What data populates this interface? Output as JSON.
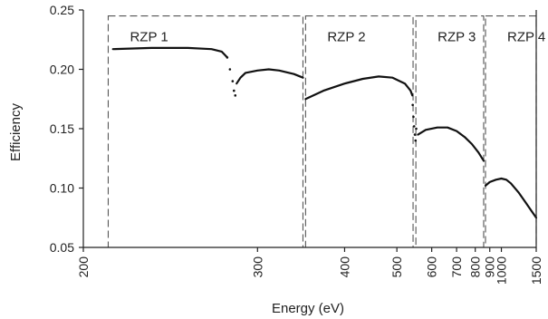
{
  "chart_data": {
    "type": "line",
    "xlabel": "Energy (eV)",
    "ylabel": "Efficiency",
    "ylim": [
      0.05,
      0.25
    ],
    "yticks": [
      0.05,
      0.1,
      0.15,
      0.2,
      0.25
    ],
    "ytick_labels": [
      "0.05",
      "0.10",
      "0.15",
      "0.20",
      "0.25"
    ],
    "xticks": [
      200,
      300,
      400,
      500,
      600,
      700,
      800,
      900,
      1000,
      1500
    ],
    "xtick_labels": [
      "200",
      "300",
      "400",
      "500",
      "600",
      "700",
      "800",
      "900",
      "1000",
      "1500"
    ],
    "x_scale": "reciprocal",
    "xlim": [
      200,
      1500
    ],
    "grid": false,
    "regions": [
      {
        "label": "RZP 1",
        "x": [
          210,
          345
        ],
        "y": [
          0.05,
          0.245
        ]
      },
      {
        "label": "RZP 2",
        "x": [
          348,
          542
        ],
        "y": [
          0.05,
          0.245
        ]
      },
      {
        "label": "RZP 3",
        "x": [
          550,
          855
        ],
        "y": [
          0.05,
          0.245
        ]
      },
      {
        "label": "RZP 4",
        "x": [
          868,
          1500
        ],
        "y": [
          0.05,
          0.245
        ]
      }
    ],
    "series": [
      {
        "x": [
          212,
          230,
          250,
          265,
          272,
          276
        ],
        "y": [
          0.217,
          0.218,
          0.218,
          0.217,
          0.215,
          0.21
        ]
      },
      {
        "x": [
          283,
          286,
          290,
          300,
          310,
          320,
          335,
          345
        ],
        "y": [
          0.188,
          0.193,
          0.197,
          0.199,
          0.2,
          0.199,
          0.196,
          0.193
        ]
      },
      {
        "x": [
          348,
          370,
          400,
          430,
          460,
          490,
          520,
          535,
          540
        ],
        "y": [
          0.175,
          0.182,
          0.188,
          0.192,
          0.194,
          0.193,
          0.188,
          0.182,
          0.178
        ]
      },
      {
        "x": [
          556,
          580,
          620,
          660,
          700,
          740,
          780,
          820,
          855
        ],
        "y": [
          0.145,
          0.149,
          0.151,
          0.151,
          0.148,
          0.143,
          0.137,
          0.13,
          0.123
        ]
      },
      {
        "x": [
          868,
          900,
          950,
          1000,
          1050,
          1100,
          1200,
          1300,
          1400,
          1500
        ],
        "y": [
          0.102,
          0.105,
          0.107,
          0.108,
          0.107,
          0.104,
          0.096,
          0.088,
          0.081,
          0.075
        ]
      }
    ],
    "dips": [
      {
        "x": [
          276,
          278,
          280,
          281,
          282
        ],
        "y": [
          0.21,
          0.2,
          0.19,
          0.182,
          0.178
        ]
      },
      {
        "x": [
          541,
          543,
          545,
          547,
          549,
          551
        ],
        "y": [
          0.17,
          0.16,
          0.152,
          0.145,
          0.14,
          0.15
        ]
      }
    ]
  }
}
